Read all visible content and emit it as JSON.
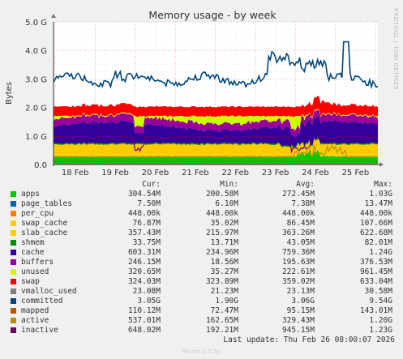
{
  "chart_data": {
    "type": "area",
    "title": "Memory usage - by week",
    "ylabel": "Bytes",
    "y_ticks": [
      "0.0",
      "1.0 G",
      "2.0 G",
      "3.0 G",
      "4.0 G",
      "5.0 G"
    ],
    "ylim": [
      0,
      5.0
    ],
    "x_ticks": [
      "18 Feb",
      "19 Feb",
      "20 Feb",
      "21 Feb",
      "22 Feb",
      "23 Feb",
      "24 Feb",
      "25 Feb"
    ],
    "grid": true,
    "legend_headers": {
      "cur": "Cur:",
      "min": "Min:",
      "avg": "Avg:",
      "max": "Max:"
    },
    "series": [
      {
        "name": "apps",
        "color": "#00cc00",
        "cur": "304.54M",
        "min": "200.58M",
        "avg": "272.45M",
        "max": "1.03G"
      },
      {
        "name": "page_tables",
        "color": "#0066b3",
        "cur": "7.50M",
        "min": "6.10M",
        "avg": "7.38M",
        "max": "13.47M"
      },
      {
        "name": "per_cpu",
        "color": "#ff8000",
        "cur": "448.00k",
        "min": "448.00k",
        "avg": "448.00k",
        "max": "448.00k"
      },
      {
        "name": "swap_cache",
        "color": "#ffcc00",
        "cur": "76.87M",
        "min": "35.02M",
        "avg": "86.45M",
        "max": "107.66M"
      },
      {
        "name": "slab_cache",
        "color": "#ffcc00",
        "cur": "357.43M",
        "min": "215.97M",
        "avg": "363.26M",
        "max": "622.68M"
      },
      {
        "name": "shmem",
        "color": "#008f00",
        "cur": "33.75M",
        "min": "13.71M",
        "avg": "43.05M",
        "max": "82.01M"
      },
      {
        "name": "cache",
        "color": "#330099",
        "cur": "603.31M",
        "min": "234.96M",
        "avg": "759.36M",
        "max": "1.24G"
      },
      {
        "name": "buffers",
        "color": "#990099",
        "cur": "246.15M",
        "min": "18.56M",
        "avg": "195.63M",
        "max": "376.53M"
      },
      {
        "name": "unused",
        "color": "#ccff00",
        "cur": "320.65M",
        "min": "35.27M",
        "avg": "222.61M",
        "max": "961.45M"
      },
      {
        "name": "swap",
        "color": "#ff0000",
        "cur": "324.03M",
        "min": "323.89M",
        "avg": "359.02M",
        "max": "633.04M"
      },
      {
        "name": "vmalloc_used",
        "color": "#808080",
        "cur": "23.08M",
        "min": "21.23M",
        "avg": "23.13M",
        "max": "30.58M"
      },
      {
        "name": "committed",
        "color": "#00487d",
        "cur": "3.05G",
        "min": "1.90G",
        "avg": "3.06G",
        "max": "9.54G"
      },
      {
        "name": "mapped",
        "color": "#b35a00",
        "cur": "110.12M",
        "min": "72.47M",
        "avg": "95.15M",
        "max": "143.01M"
      },
      {
        "name": "active",
        "color": "#b38f00",
        "cur": "537.01M",
        "min": "162.65M",
        "avg": "329.43M",
        "max": "1.20G"
      },
      {
        "name": "inactive",
        "color": "#6b006b",
        "cur": "648.02M",
        "min": "192.21M",
        "avg": "945.15M",
        "max": "1.23G"
      }
    ]
  },
  "last_update": "Last update: Thu Feb 26 08:00:07 2026",
  "footer": "Munin 2.0.76",
  "side_text": "RRDTOOL / TOBI OETIKER"
}
